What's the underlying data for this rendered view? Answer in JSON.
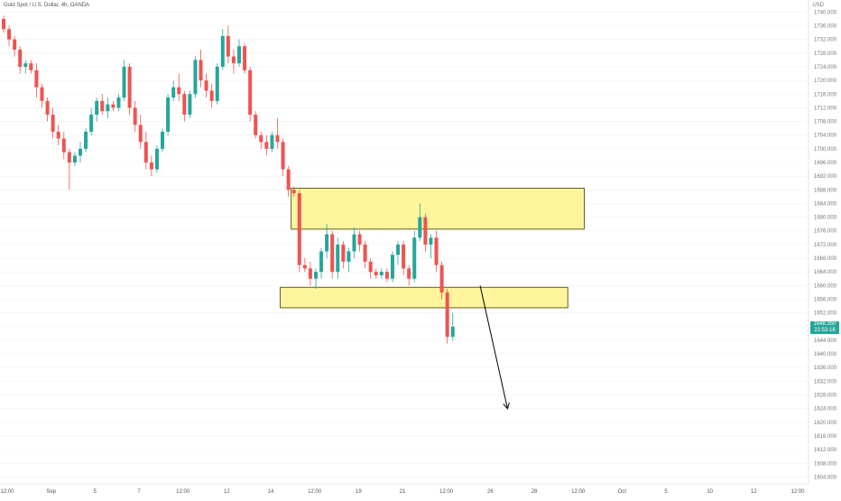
{
  "legend": "Gold Spot / U.S. Dollar, 4h, OANDA",
  "currency": "USD",
  "price_badge": {
    "price": "1648.350",
    "countdown": "22:53:18"
  },
  "colors": {
    "up": "#26a69a",
    "down": "#ef5350",
    "zone_fill": "#fff59d",
    "zone_stroke": "#3a3a00",
    "badge": "#26a69a"
  },
  "chart_data": {
    "type": "candlestick",
    "interval": "4h",
    "ylim": [
      1602,
      1743
    ],
    "y_ticks": [
      1604,
      1608,
      1612,
      1616,
      1620,
      1624,
      1628,
      1632,
      1636,
      1640,
      1644,
      1648,
      1652,
      1656,
      1660,
      1664,
      1668,
      1672,
      1676,
      1680,
      1684,
      1688,
      1692,
      1696,
      1700,
      1704,
      1708,
      1712,
      1716,
      1720,
      1724,
      1728,
      1732,
      1736,
      1740
    ],
    "x_tick_labels": [
      "12:00",
      "Sep",
      "5",
      "7",
      "12:00",
      "12",
      "14",
      "12:00",
      "19",
      "21",
      "12:00",
      "26",
      "28",
      "12:00",
      "Oct",
      "5",
      "10",
      "12",
      "12:00"
    ],
    "candles": [
      [
        1738,
        1739,
        1734,
        1735
      ],
      [
        1735,
        1736,
        1730,
        1732
      ],
      [
        1732,
        1733,
        1727,
        1729
      ],
      [
        1729,
        1730,
        1722,
        1724
      ],
      [
        1724,
        1726,
        1722,
        1725
      ],
      [
        1725,
        1726,
        1722,
        1723
      ],
      [
        1723,
        1725,
        1715,
        1718
      ],
      [
        1718,
        1719,
        1712,
        1714
      ],
      [
        1714,
        1715,
        1708,
        1710
      ],
      [
        1710,
        1712,
        1703,
        1705
      ],
      [
        1705,
        1707,
        1701,
        1703
      ],
      [
        1703,
        1705,
        1697,
        1699
      ],
      [
        1699,
        1700,
        1688,
        1696
      ],
      [
        1696,
        1699,
        1695,
        1698
      ],
      [
        1698,
        1702,
        1696,
        1700
      ],
      [
        1700,
        1706,
        1699,
        1705
      ],
      [
        1705,
        1712,
        1704,
        1710
      ],
      [
        1710,
        1715,
        1708,
        1714
      ],
      [
        1714,
        1716,
        1710,
        1711
      ],
      [
        1711,
        1715,
        1709,
        1713
      ],
      [
        1713,
        1714,
        1711,
        1712
      ],
      [
        1712,
        1716,
        1711,
        1715
      ],
      [
        1715,
        1726,
        1714,
        1724
      ],
      [
        1724,
        1725,
        1710,
        1712
      ],
      [
        1712,
        1714,
        1705,
        1707
      ],
      [
        1707,
        1710,
        1700,
        1702
      ],
      [
        1702,
        1705,
        1694,
        1696
      ],
      [
        1696,
        1698,
        1692,
        1694
      ],
      [
        1694,
        1701,
        1693,
        1700
      ],
      [
        1700,
        1706,
        1699,
        1705
      ],
      [
        1705,
        1716,
        1704,
        1715
      ],
      [
        1715,
        1720,
        1714,
        1718
      ],
      [
        1718,
        1722,
        1714,
        1716
      ],
      [
        1716,
        1717,
        1708,
        1710
      ],
      [
        1710,
        1717,
        1709,
        1716
      ],
      [
        1716,
        1727,
        1715,
        1726
      ],
      [
        1726,
        1729,
        1718,
        1720
      ],
      [
        1720,
        1722,
        1715,
        1717
      ],
      [
        1717,
        1719,
        1712,
        1714
      ],
      [
        1714,
        1725,
        1713,
        1724
      ],
      [
        1724,
        1735,
        1723,
        1733
      ],
      [
        1733,
        1736,
        1725,
        1727
      ],
      [
        1727,
        1729,
        1722,
        1725
      ],
      [
        1725,
        1732,
        1724,
        1730
      ],
      [
        1730,
        1731,
        1722,
        1723
      ],
      [
        1723,
        1724,
        1708,
        1710
      ],
      [
        1710,
        1711,
        1703,
        1704
      ],
      [
        1704,
        1705,
        1700,
        1702
      ],
      [
        1702,
        1704,
        1698,
        1700
      ],
      [
        1700,
        1705,
        1699,
        1704
      ],
      [
        1704,
        1709,
        1700,
        1702
      ],
      [
        1702,
        1703,
        1692,
        1694
      ],
      [
        1694,
        1695,
        1686,
        1688
      ],
      [
        1688,
        1689,
        1686,
        1687
      ],
      [
        1687,
        1688,
        1664,
        1666
      ],
      [
        1666,
        1668,
        1664,
        1665
      ],
      [
        1665,
        1667,
        1660,
        1662
      ],
      [
        1662,
        1665,
        1659,
        1664
      ],
      [
        1664,
        1671,
        1662,
        1670
      ],
      [
        1670,
        1678,
        1668,
        1675
      ],
      [
        1675,
        1676,
        1662,
        1664
      ],
      [
        1664,
        1674,
        1662,
        1672
      ],
      [
        1672,
        1673,
        1665,
        1667
      ],
      [
        1667,
        1671,
        1664,
        1670
      ],
      [
        1670,
        1677,
        1668,
        1675
      ],
      [
        1675,
        1676,
        1670,
        1672
      ],
      [
        1672,
        1673,
        1665,
        1667
      ],
      [
        1667,
        1668,
        1662,
        1664
      ],
      [
        1664,
        1665,
        1662,
        1663
      ],
      [
        1663,
        1665,
        1662,
        1664
      ],
      [
        1664,
        1665,
        1661,
        1662
      ],
      [
        1662,
        1670,
        1661,
        1669
      ],
      [
        1669,
        1673,
        1666,
        1672
      ],
      [
        1672,
        1673,
        1663,
        1665
      ],
      [
        1665,
        1666,
        1660,
        1662
      ],
      [
        1662,
        1676,
        1661,
        1674
      ],
      [
        1674,
        1684,
        1673,
        1680
      ],
      [
        1680,
        1681,
        1670,
        1672
      ],
      [
        1672,
        1675,
        1668,
        1674
      ],
      [
        1674,
        1676,
        1664,
        1666
      ],
      [
        1666,
        1667,
        1656,
        1658
      ],
      [
        1658,
        1659,
        1643,
        1645
      ],
      [
        1645,
        1652,
        1644,
        1648
      ]
    ],
    "zones": [
      {
        "name": "upper-zone",
        "from_candle": 53,
        "to_candle": 106,
        "y_low": 1676.5,
        "y_high": 1688.5
      },
      {
        "name": "lower-zone",
        "from_candle": 51,
        "to_candle": 103,
        "y_low": 1653.5,
        "y_high": 1659.5
      }
    ],
    "arrow": {
      "from": [
        87,
        1660
      ],
      "to": [
        92,
        1624
      ]
    },
    "last_price": 1648.35
  }
}
